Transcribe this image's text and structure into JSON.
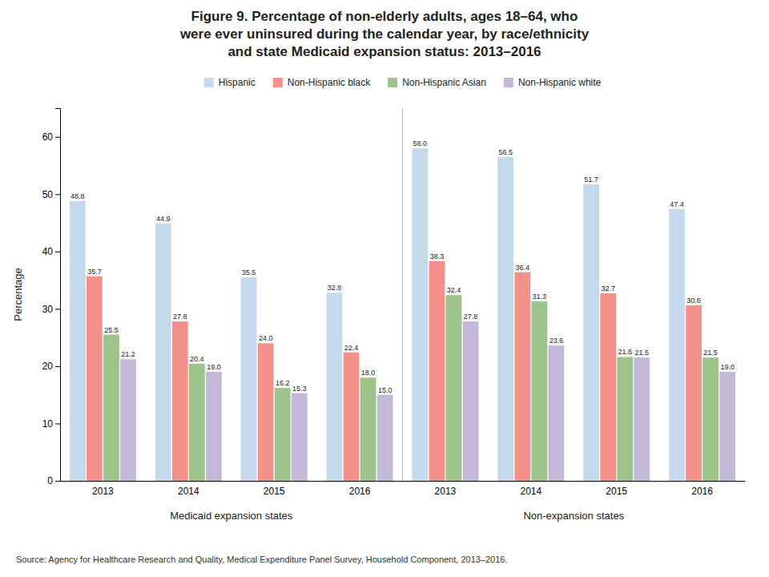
{
  "chart_data": {
    "type": "bar",
    "title": [
      "Figure 9. Percentage of non-elderly adults, ages 18–64, who",
      "were ever uninsured during the calendar year, by race/ethnicity",
      "and state Medicaid expansion status: 2013–2016"
    ],
    "y_label": "Percentage",
    "categories": [
      "2013",
      "2014",
      "2015",
      "2016",
      "2013",
      "2014",
      "2015",
      "2016"
    ],
    "annotations": [
      "Medicaid expansion states",
      "Non-expansion states"
    ],
    "source": "Source: Agency for Healthcare Research and Quality, Medical Expenditure Panel Survey, Household Component, 2013–2016.",
    "series": [
      {
        "name": "Hispanic",
        "color": "#c5d9ed",
        "values": [
          48.8,
          44.9,
          35.5,
          32.8,
          58.0,
          56.5,
          51.7,
          47.4
        ],
        "value_labels": [
          "48.8",
          "44.9",
          "35.5",
          "32.8",
          "58.0",
          "56.5",
          "51.7",
          "47.4"
        ]
      },
      {
        "name": "Non-Hispanic black",
        "color": "#f4908a",
        "values": [
          35.7,
          27.8,
          24.0,
          22.4,
          38.3,
          36.4,
          32.7,
          30.6
        ],
        "value_labels": [
          "35.7",
          "27.8",
          "24.0",
          "22.4",
          "38.3",
          "36.4",
          "32.7",
          "30.6"
        ]
      },
      {
        "name": "Non-Hispanic Asian",
        "color": "#9dc38a",
        "values": [
          25.5,
          20.4,
          16.2,
          18.0,
          32.4,
          31.3,
          21.6,
          21.5
        ],
        "value_labels": [
          "25.5",
          "20.4",
          "16.2",
          "18.0",
          "32.4",
          "31.3",
          "21.6",
          "21.5"
        ]
      },
      {
        "name": "Non-Hispanic white",
        "color": "#c4b8d8",
        "values": [
          21.2,
          19.0,
          15.3,
          15.0,
          27.8,
          23.6,
          21.5,
          19.0
        ],
        "value_labels": [
          "21.2",
          "19.0",
          "15.3",
          "15.0",
          "27.8",
          "23.6",
          "21.5",
          "19.0"
        ]
      }
    ],
    "ylim": [
      0,
      65
    ],
    "yticks": [
      0,
      10,
      20,
      30,
      40,
      50,
      60
    ],
    "grid": false,
    "legend": "top",
    "data_labels": true
  }
}
